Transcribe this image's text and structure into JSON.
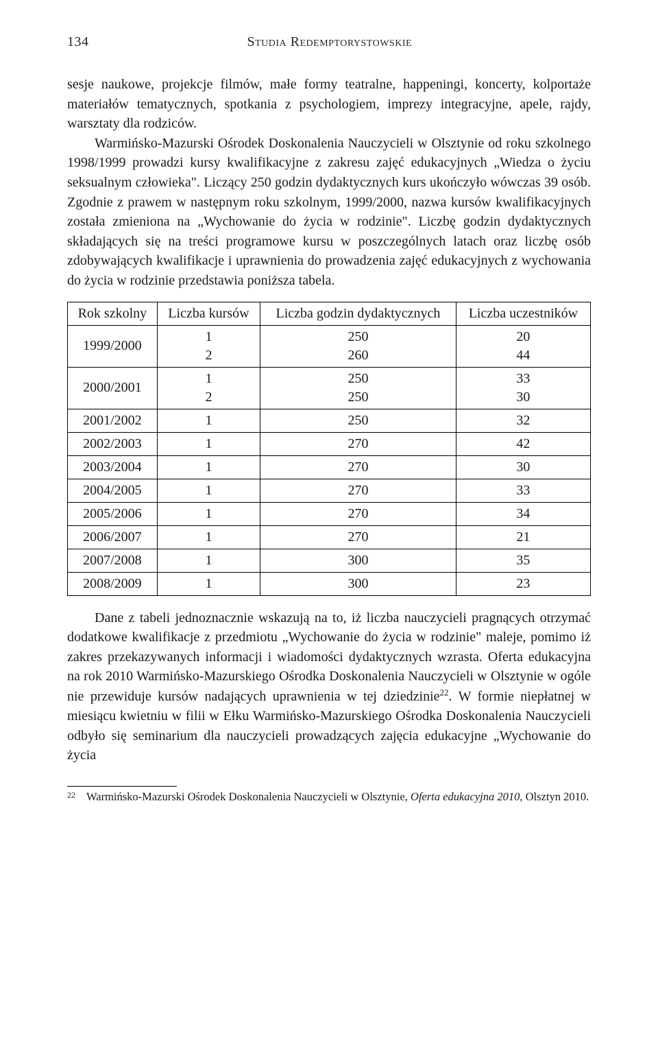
{
  "header": {
    "page_number": "134",
    "running_title": "Studia Redemptorystowskie"
  },
  "paragraphs": {
    "p1": "sesje naukowe, projekcje filmów, małe formy teatralne, happeningi, koncerty, kolportaże materiałów tematycznych, spotkania z psychologiem, imprezy integracyjne, apele, rajdy, warsztaty dla rodziców.",
    "p2a": "Warmińsko-Mazurski Ośrodek Doskonalenia Nauczycieli w Olsztynie od roku szkolnego 1998/1999 prowadzi kursy kwalifikacyjne z zakresu zajęć edukacyjnych „Wiedza o życiu seksualnym człowieka\". Liczący 250 godzin dydaktycznych kurs ukończyło wówczas 39 osób. Zgodnie z prawem w następnym roku szkolnym, 1999/2000, nazwa kursów kwalifikacyjnych została zmieniona na „Wychowanie do życia w rodzinie\". Liczbę godzin dydaktycznych składających się na treści programowe kursu w poszczególnych latach oraz liczbę osób zdobywających kwalifikacje i uprawnienia do prowadzenia zajęć edukacyjnych z wychowania do życia w rodzinie przedstawia poniższa tabela.",
    "p3a": "Dane z tabeli jednoznacznie wskazują na to, iż liczba nauczycieli pragnących otrzymać dodatkowe kwalifikacje z przedmiotu „Wychowanie do życia w rodzinie\" maleje, pomimo iż zakres przekazywanych informacji i wiadomości dydaktycznych wzrasta. Oferta edukacyjna na rok 2010 Warmińsko-Mazurskiego Ośrodka Doskonalenia Nauczycieli w Olsztynie w ogóle nie przewiduje kursów nadających uprawnienia w tej dziedzinie",
    "p3b": ". W formie niepłatnej w miesiącu kwietniu w filii w Ełku Warmińsko-Mazurskiego Ośrodka Doskonalenia Nauczycieli odbyło się seminarium dla nauczycieli prowadzących zajęcia edukacyjne „Wychowanie do życia",
    "ref22": "22"
  },
  "table": {
    "headers": {
      "c1": "Rok szkolny",
      "c2": "Liczba kursów",
      "c3": "Liczba godzin dydaktycznych",
      "c4": "Liczba uczestników"
    },
    "rows": [
      {
        "year": "1999/2000",
        "courses": "1\n2",
        "hours": "250\n260",
        "participants": "20\n44"
      },
      {
        "year": "2000/2001",
        "courses": "1\n2",
        "hours": "250\n250",
        "participants": "33\n30"
      },
      {
        "year": "2001/2002",
        "courses": "1",
        "hours": "250",
        "participants": "32"
      },
      {
        "year": "2002/2003",
        "courses": "1",
        "hours": "270",
        "participants": "42"
      },
      {
        "year": "2003/2004",
        "courses": "1",
        "hours": "270",
        "participants": "30"
      },
      {
        "year": "2004/2005",
        "courses": "1",
        "hours": "270",
        "participants": "33"
      },
      {
        "year": "2005/2006",
        "courses": "1",
        "hours": "270",
        "participants": "34"
      },
      {
        "year": "2006/2007",
        "courses": "1",
        "hours": "270",
        "participants": "21"
      },
      {
        "year": "2007/2008",
        "courses": "1",
        "hours": "300",
        "participants": "35"
      },
      {
        "year": "2008/2009",
        "courses": "1",
        "hours": "300",
        "participants": "23"
      }
    ]
  },
  "footnote": {
    "mark": "22",
    "text_a": "Warmińsko-Mazurski Ośrodek Doskonalenia Nauczycieli w Olsztynie, ",
    "text_italic": "Oferta edukacyjna 2010",
    "text_b": ", Olsztyn 2010."
  }
}
